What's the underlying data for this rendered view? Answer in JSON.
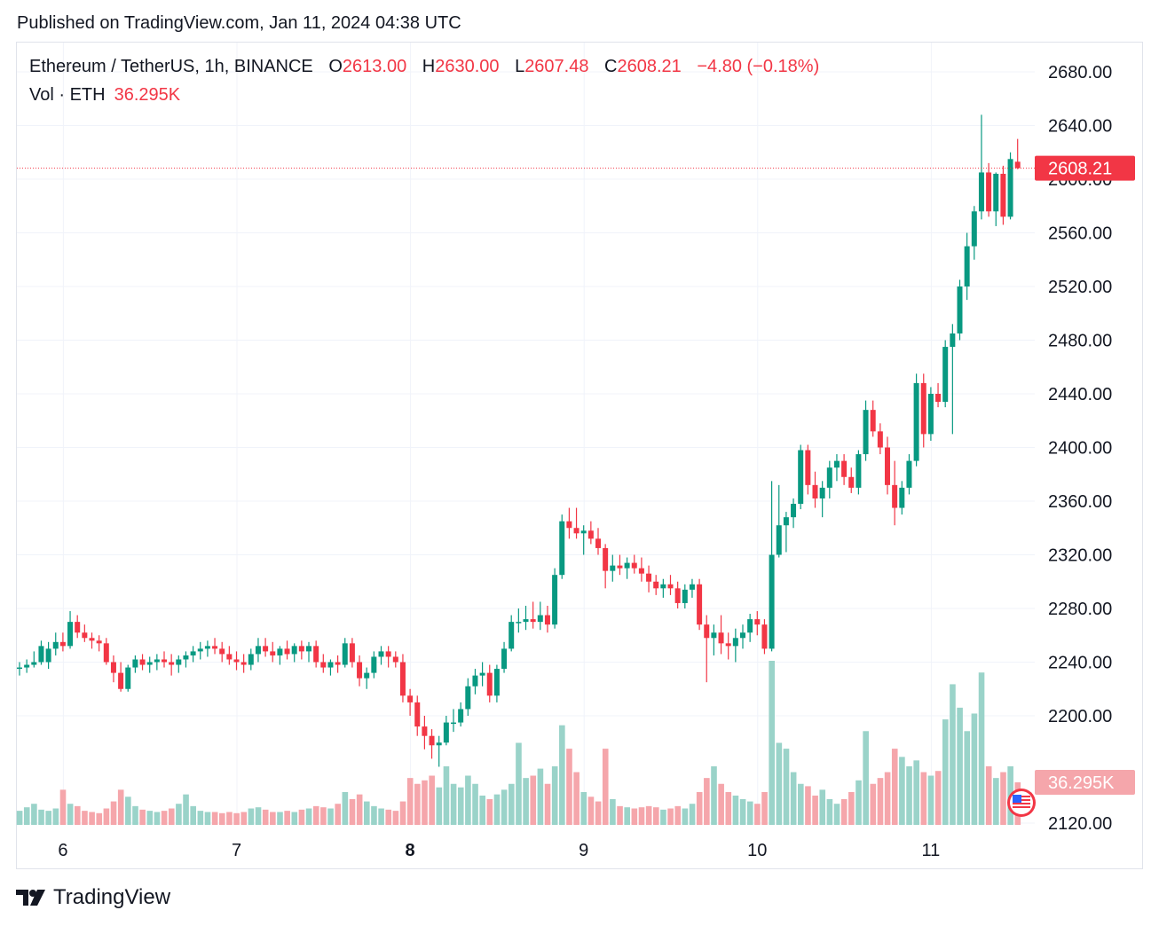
{
  "published": "Published on TradingView.com, Jan 11, 2024 04:38 UTC",
  "legend": {
    "symbol": "Ethereum / TetherUS, 1h, BINANCE",
    "o_label": "O",
    "o_value": "2613.00",
    "h_label": "H",
    "h_value": "2630.00",
    "l_label": "L",
    "l_value": "2607.48",
    "c_label": "C",
    "c_value": "2608.21",
    "change": "−4.80 (−0.18%)"
  },
  "volume_legend": {
    "label": "Vol · ETH",
    "value": "36.295K"
  },
  "brand": "TradingView",
  "colors": {
    "up": "#089981",
    "down": "#f23645",
    "up_vol": "#9ad3c9",
    "down_vol": "#f5a6ab",
    "grid": "#f0f3fa",
    "axis_text": "#131722"
  },
  "chart_data": {
    "type": "candlestick",
    "interval": "1h",
    "symbol": "ETHUSDT",
    "y_axis": {
      "ticks": [
        "2680.00",
        "2640.00",
        "2600.00",
        "2560.00",
        "2520.00",
        "2480.00",
        "2440.00",
        "2400.00",
        "2360.00",
        "2320.00",
        "2280.00",
        "2240.00",
        "2200.00",
        "2120.00"
      ],
      "range": [
        2120,
        2690
      ]
    },
    "x_axis": {
      "ticks": [
        {
          "label": "6",
          "index": 6
        },
        {
          "label": "7",
          "index": 30
        },
        {
          "label": "8",
          "index": 54,
          "bold": true
        },
        {
          "label": "9",
          "index": 78
        },
        {
          "label": "10",
          "index": 102
        },
        {
          "label": "11",
          "index": 126
        }
      ]
    },
    "last_price": "2608.21",
    "last_volume": "36.295K",
    "volume_max": 140000,
    "candles": [
      [
        2235,
        2240,
        2230,
        2236,
        12000
      ],
      [
        2236,
        2242,
        2232,
        2238,
        15000
      ],
      [
        2238,
        2248,
        2236,
        2240,
        18000
      ],
      [
        2240,
        2256,
        2238,
        2252,
        13000
      ],
      [
        2240,
        2255,
        2235,
        2250,
        12000
      ],
      [
        2250,
        2262,
        2245,
        2255,
        14000
      ],
      [
        2255,
        2262,
        2248,
        2252,
        30000
      ],
      [
        2252,
        2278,
        2250,
        2270,
        18000
      ],
      [
        2270,
        2275,
        2258,
        2262,
        16000
      ],
      [
        2262,
        2268,
        2255,
        2258,
        12000
      ],
      [
        2258,
        2262,
        2250,
        2256,
        11000
      ],
      [
        2256,
        2260,
        2248,
        2254,
        10000
      ],
      [
        2254,
        2258,
        2238,
        2240,
        14000
      ],
      [
        2240,
        2245,
        2225,
        2232,
        20000
      ],
      [
        2232,
        2240,
        2218,
        2220,
        30000
      ],
      [
        2220,
        2238,
        2218,
        2236,
        24000
      ],
      [
        2236,
        2245,
        2232,
        2242,
        16000
      ],
      [
        2242,
        2246,
        2234,
        2238,
        13000
      ],
      [
        2238,
        2244,
        2232,
        2240,
        12000
      ],
      [
        2240,
        2246,
        2234,
        2242,
        11000
      ],
      [
        2242,
        2248,
        2236,
        2240,
        12000
      ],
      [
        2240,
        2246,
        2230,
        2238,
        14000
      ],
      [
        2238,
        2245,
        2232,
        2242,
        18000
      ],
      [
        2242,
        2248,
        2236,
        2245,
        26000
      ],
      [
        2245,
        2252,
        2240,
        2248,
        16000
      ],
      [
        2248,
        2255,
        2242,
        2250,
        12000
      ],
      [
        2250,
        2256,
        2244,
        2252,
        11000
      ],
      [
        2252,
        2258,
        2246,
        2250,
        11000
      ],
      [
        2250,
        2255,
        2240,
        2246,
        10000
      ],
      [
        2246,
        2252,
        2238,
        2242,
        11000
      ],
      [
        2242,
        2248,
        2234,
        2240,
        10000
      ],
      [
        2240,
        2246,
        2232,
        2238,
        11000
      ],
      [
        2238,
        2250,
        2234,
        2246,
        14000
      ],
      [
        2246,
        2258,
        2240,
        2252,
        15000
      ],
      [
        2252,
        2258,
        2244,
        2248,
        13000
      ],
      [
        2248,
        2255,
        2240,
        2245,
        11000
      ],
      [
        2245,
        2252,
        2238,
        2250,
        11000
      ],
      [
        2250,
        2256,
        2242,
        2246,
        12000
      ],
      [
        2246,
        2254,
        2240,
        2252,
        11000
      ],
      [
        2252,
        2256,
        2242,
        2248,
        13000
      ],
      [
        2248,
        2255,
        2240,
        2252,
        14000
      ],
      [
        2252,
        2256,
        2236,
        2240,
        16000
      ],
      [
        2240,
        2246,
        2232,
        2236,
        15000
      ],
      [
        2236,
        2242,
        2230,
        2240,
        14000
      ],
      [
        2240,
        2245,
        2232,
        2238,
        18000
      ],
      [
        2238,
        2258,
        2236,
        2254,
        28000
      ],
      [
        2254,
        2258,
        2236,
        2240,
        22000
      ],
      [
        2240,
        2245,
        2222,
        2228,
        26000
      ],
      [
        2228,
        2236,
        2220,
        2232,
        20000
      ],
      [
        2232,
        2248,
        2228,
        2244,
        16000
      ],
      [
        2244,
        2252,
        2238,
        2248,
        14000
      ],
      [
        2248,
        2252,
        2236,
        2244,
        13000
      ],
      [
        2244,
        2248,
        2236,
        2240,
        12000
      ],
      [
        2240,
        2246,
        2210,
        2215,
        20000
      ],
      [
        2215,
        2220,
        2200,
        2210,
        40000
      ],
      [
        2210,
        2215,
        2185,
        2192,
        35000
      ],
      [
        2192,
        2200,
        2175,
        2185,
        38000
      ],
      [
        2185,
        2190,
        2168,
        2178,
        42000
      ],
      [
        2178,
        2185,
        2162,
        2180,
        32000
      ],
      [
        2180,
        2200,
        2178,
        2195,
        50000
      ],
      [
        2195,
        2205,
        2188,
        2195,
        35000
      ],
      [
        2195,
        2210,
        2192,
        2205,
        32000
      ],
      [
        2205,
        2228,
        2200,
        2222,
        42000
      ],
      [
        2222,
        2235,
        2216,
        2230,
        35000
      ],
      [
        2230,
        2240,
        2222,
        2232,
        25000
      ],
      [
        2232,
        2238,
        2210,
        2215,
        22000
      ],
      [
        2215,
        2238,
        2210,
        2235,
        26000
      ],
      [
        2235,
        2255,
        2232,
        2250,
        30000
      ],
      [
        2250,
        2275,
        2248,
        2270,
        35000
      ],
      [
        2270,
        2280,
        2262,
        2270,
        70000
      ],
      [
        2270,
        2282,
        2264,
        2272,
        40000
      ],
      [
        2272,
        2285,
        2265,
        2270,
        42000
      ],
      [
        2270,
        2285,
        2264,
        2275,
        48000
      ],
      [
        2275,
        2282,
        2262,
        2268,
        35000
      ],
      [
        2268,
        2310,
        2265,
        2305,
        50000
      ],
      [
        2305,
        2350,
        2302,
        2345,
        85000
      ],
      [
        2345,
        2355,
        2332,
        2340,
        65000
      ],
      [
        2340,
        2355,
        2332,
        2336,
        45000
      ],
      [
        2336,
        2342,
        2320,
        2338,
        28000
      ],
      [
        2338,
        2345,
        2328,
        2332,
        24000
      ],
      [
        2332,
        2340,
        2320,
        2325,
        20000
      ],
      [
        2325,
        2328,
        2295,
        2308,
        65000
      ],
      [
        2308,
        2320,
        2300,
        2312,
        22000
      ],
      [
        2312,
        2320,
        2305,
        2310,
        16000
      ],
      [
        2310,
        2318,
        2302,
        2314,
        15000
      ],
      [
        2314,
        2320,
        2306,
        2310,
        14000
      ],
      [
        2310,
        2318,
        2300,
        2306,
        15000
      ],
      [
        2306,
        2312,
        2292,
        2300,
        16000
      ],
      [
        2300,
        2305,
        2290,
        2295,
        15000
      ],
      [
        2295,
        2302,
        2288,
        2298,
        13000
      ],
      [
        2298,
        2305,
        2290,
        2295,
        14000
      ],
      [
        2295,
        2300,
        2280,
        2284,
        16000
      ],
      [
        2284,
        2298,
        2280,
        2294,
        14000
      ],
      [
        2294,
        2302,
        2288,
        2298,
        18000
      ],
      [
        2298,
        2302,
        2264,
        2268,
        28000
      ],
      [
        2268,
        2275,
        2225,
        2258,
        40000
      ],
      [
        2258,
        2268,
        2245,
        2262,
        50000
      ],
      [
        2262,
        2275,
        2246,
        2254,
        35000
      ],
      [
        2254,
        2262,
        2242,
        2252,
        28000
      ],
      [
        2252,
        2265,
        2240,
        2258,
        25000
      ],
      [
        2258,
        2268,
        2250,
        2262,
        22000
      ],
      [
        2262,
        2276,
        2255,
        2272,
        20000
      ],
      [
        2272,
        2278,
        2260,
        2268,
        18000
      ],
      [
        2268,
        2272,
        2246,
        2250,
        28000
      ],
      [
        2250,
        2375,
        2248,
        2320,
        140000
      ],
      [
        2320,
        2372,
        2318,
        2342,
        70000
      ],
      [
        2342,
        2352,
        2322,
        2348,
        65000
      ],
      [
        2348,
        2362,
        2340,
        2358,
        45000
      ],
      [
        2358,
        2402,
        2354,
        2398,
        35000
      ],
      [
        2398,
        2402,
        2365,
        2372,
        33000
      ],
      [
        2372,
        2382,
        2355,
        2362,
        25000
      ],
      [
        2362,
        2375,
        2348,
        2370,
        30000
      ],
      [
        2370,
        2390,
        2362,
        2385,
        22000
      ],
      [
        2385,
        2395,
        2375,
        2390,
        18000
      ],
      [
        2390,
        2395,
        2372,
        2378,
        22000
      ],
      [
        2378,
        2385,
        2366,
        2370,
        28000
      ],
      [
        2370,
        2398,
        2365,
        2395,
        38000
      ],
      [
        2395,
        2435,
        2390,
        2428,
        80000
      ],
      [
        2428,
        2435,
        2408,
        2412,
        35000
      ],
      [
        2412,
        2418,
        2395,
        2400,
        40000
      ],
      [
        2400,
        2408,
        2365,
        2372,
        45000
      ],
      [
        2372,
        2390,
        2342,
        2355,
        65000
      ],
      [
        2355,
        2375,
        2350,
        2370,
        58000
      ],
      [
        2370,
        2395,
        2365,
        2390,
        50000
      ],
      [
        2390,
        2455,
        2386,
        2448,
        55000
      ],
      [
        2448,
        2455,
        2400,
        2410,
        45000
      ],
      [
        2410,
        2445,
        2405,
        2440,
        42000
      ],
      [
        2440,
        2448,
        2430,
        2434,
        46000
      ],
      [
        2434,
        2480,
        2430,
        2475,
        90000
      ],
      [
        2475,
        2492,
        2410,
        2485,
        120000
      ],
      [
        2485,
        2525,
        2480,
        2520,
        100000
      ],
      [
        2520,
        2560,
        2510,
        2550,
        80000
      ],
      [
        2550,
        2580,
        2540,
        2576,
        95000
      ],
      [
        2576,
        2648,
        2570,
        2605,
        130000
      ],
      [
        2605,
        2612,
        2572,
        2576,
        50000
      ],
      [
        2576,
        2605,
        2565,
        2604,
        40000
      ],
      [
        2604,
        2610,
        2566,
        2572,
        45000
      ],
      [
        2572,
        2620,
        2570,
        2615,
        50000
      ],
      [
        2613,
        2630,
        2607.48,
        2608.21,
        36295
      ]
    ]
  }
}
